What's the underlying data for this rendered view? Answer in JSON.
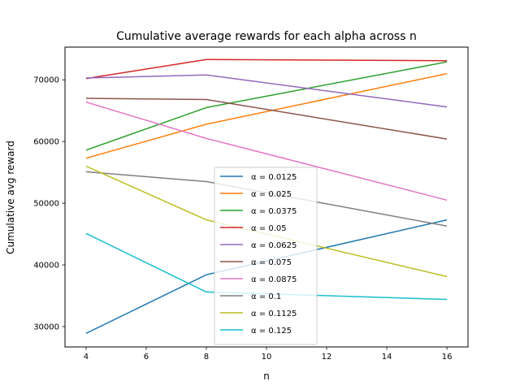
{
  "chart_data": {
    "type": "line",
    "title": "Cumulative average rewards for each alpha across n",
    "xlabel": "n",
    "ylabel": "Cumulative avg reward",
    "x": [
      4,
      8,
      16
    ],
    "xlim": [
      3.3,
      16.7
    ],
    "ylim": [
      26700,
      75300
    ],
    "xticks": [
      4,
      6,
      8,
      10,
      12,
      14,
      16
    ],
    "yticks": [
      30000,
      40000,
      50000,
      60000,
      70000
    ],
    "grid": false,
    "legend_position": "bottom-center",
    "series": [
      {
        "name": "α = 0.0125",
        "values": [
          28900,
          38400,
          47300
        ],
        "color": "#1f77b4"
      },
      {
        "name": "α = 0.025",
        "values": [
          57300,
          62800,
          71000
        ],
        "color": "#ff7f0e"
      },
      {
        "name": "α = 0.0375",
        "values": [
          58600,
          65500,
          72900
        ],
        "color": "#2ca02c"
      },
      {
        "name": "α = 0.05",
        "values": [
          70200,
          73300,
          73100
        ],
        "color": "#d62728"
      },
      {
        "name": "α = 0.0625",
        "values": [
          70300,
          70800,
          65600
        ],
        "color": "#9467bd"
      },
      {
        "name": "α = 0.075",
        "values": [
          67000,
          66800,
          60400
        ],
        "color": "#8c564b"
      },
      {
        "name": "α = 0.0875",
        "values": [
          66400,
          60500,
          50500
        ],
        "color": "#e377c2"
      },
      {
        "name": "α = 0.1",
        "values": [
          55100,
          53500,
          46300
        ],
        "color": "#7f7f7f"
      },
      {
        "name": "α = 0.1125",
        "values": [
          56000,
          47300,
          38100
        ],
        "color": "#bcbd22"
      },
      {
        "name": "α = 0.125",
        "values": [
          45100,
          35600,
          34400
        ],
        "color": "#17becf"
      }
    ]
  }
}
